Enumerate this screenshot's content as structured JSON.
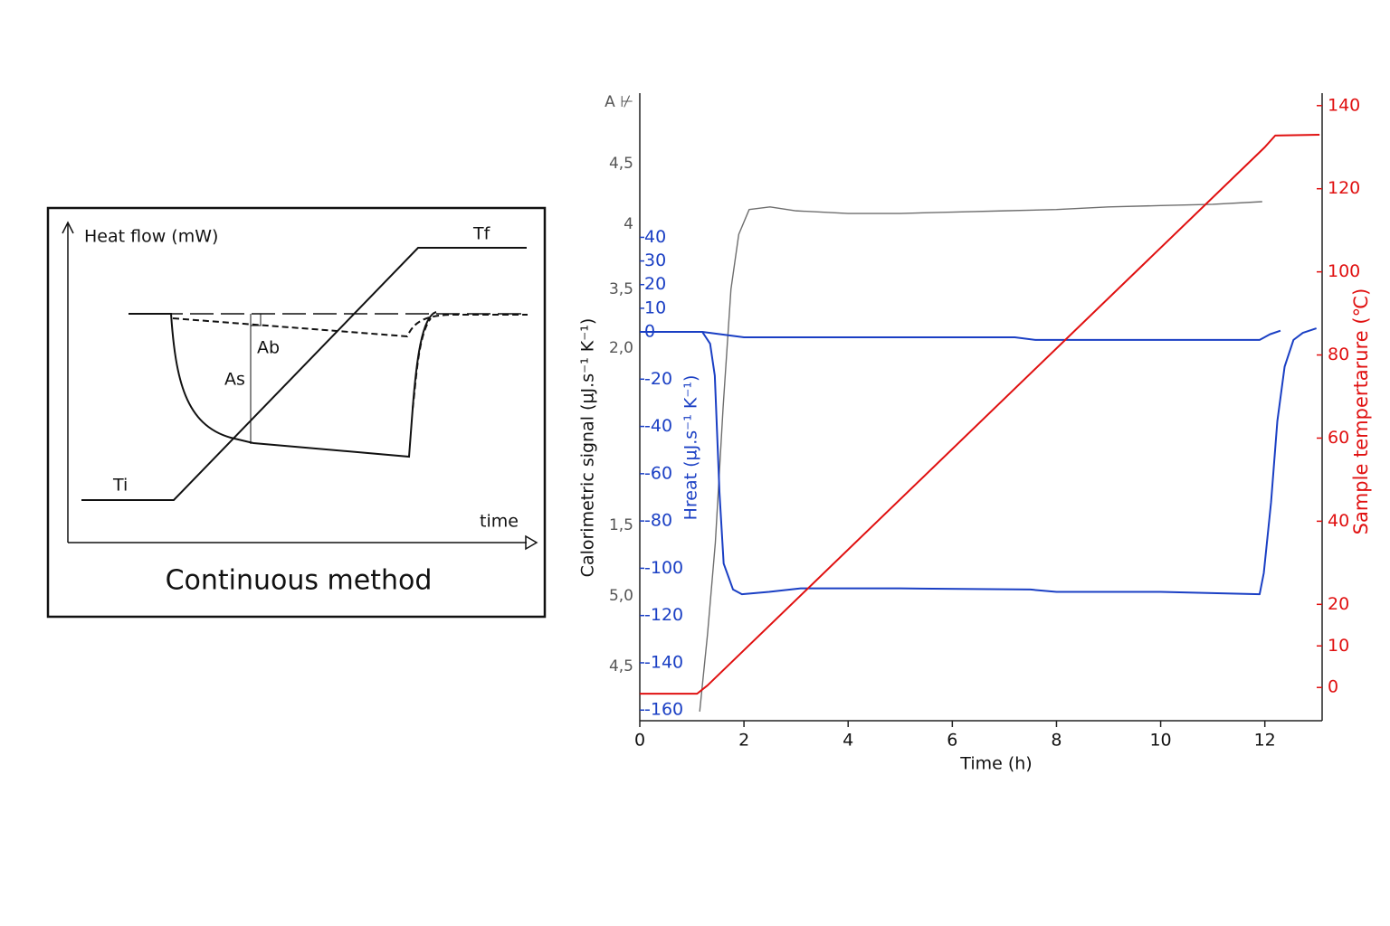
{
  "diagram": {
    "y_label": "Heat flow (mW)",
    "tf": "Tf",
    "ab": "Ab",
    "as": "As",
    "ti": "Ti",
    "x_label": "time",
    "title": "Continuous method"
  },
  "chart_data": {
    "type": "line",
    "x_label": "Time (h)",
    "y_label": "Calorimetric signal (µJ.s⁻¹ K⁻¹)",
    "y3_label": "Hreat (µJ.s⁻¹ K⁻¹)",
    "y2_label": "Sample tempertarure (℃)",
    "xlim": [
      0,
      13.1
    ],
    "xticks": [
      0,
      2,
      4,
      6,
      8,
      10,
      12
    ],
    "ylim": [
      0.2,
      5.0
    ],
    "ytick_labels": [
      "A ⊬",
      "4,5",
      "4",
      "3,5",
      "2,0",
      "1,5",
      "5,0",
      "4,5"
    ],
    "y3lim": [
      -164.5,
      101
    ],
    "y3ticks": [
      40,
      30,
      20,
      10,
      0,
      -20,
      -40,
      -60,
      -80,
      -100,
      -120,
      -140,
      -160
    ],
    "y2lim": [
      -8,
      143
    ],
    "y2ticks": [
      0,
      10,
      20,
      40,
      60,
      80,
      100,
      120,
      140
    ],
    "series": [
      {
        "color": "#6e6e6e",
        "axis": "y",
        "x": [
          1.15,
          1.3,
          1.45,
          1.6,
          1.75,
          1.9,
          2.1,
          2.5,
          3,
          4,
          5,
          6,
          7,
          8,
          9,
          10,
          11,
          11.95
        ],
        "values": [
          0.27,
          0.86,
          1.56,
          2.6,
          3.5,
          3.92,
          4.11,
          4.13,
          4.1,
          4.08,
          4.08,
          4.09,
          4.1,
          4.11,
          4.13,
          4.14,
          4.15,
          4.17
        ]
      },
      {
        "color": "#1a3fc4",
        "axis": "y3",
        "x": [
          0,
          1.2,
          1.35,
          1.44,
          1.53,
          1.61,
          1.79,
          1.96,
          2.48,
          3.09,
          5,
          7.5,
          8,
          10,
          11.9,
          11.98,
          12.12,
          12.24,
          12.38,
          12.55,
          12.73,
          12.99
        ],
        "values": [
          0,
          0,
          -5,
          -18.5,
          -68,
          -98,
          -109,
          -111,
          -110,
          -108.5,
          -108.5,
          -109,
          -110,
          -110,
          -111,
          -102,
          -72,
          -37.8,
          -14.7,
          -3.4,
          -0.4,
          1.5
        ]
      },
      {
        "color": "#1a3fc4",
        "axis": "y3",
        "x": [
          1.2,
          2,
          4,
          7.2,
          7.6,
          10,
          11.9,
          12.1,
          12.3
        ],
        "values": [
          0,
          -2.3,
          -2.3,
          -2.3,
          -3.4,
          -3.4,
          -3.4,
          -1,
          0.5
        ]
      },
      {
        "color": "#e01010",
        "axis": "y2",
        "x": [
          0,
          1.1,
          1.3,
          12.0,
          12.2,
          13.05
        ],
        "values": [
          -1.5,
          -1.5,
          0.5,
          130,
          132.8,
          133
        ]
      }
    ]
  }
}
